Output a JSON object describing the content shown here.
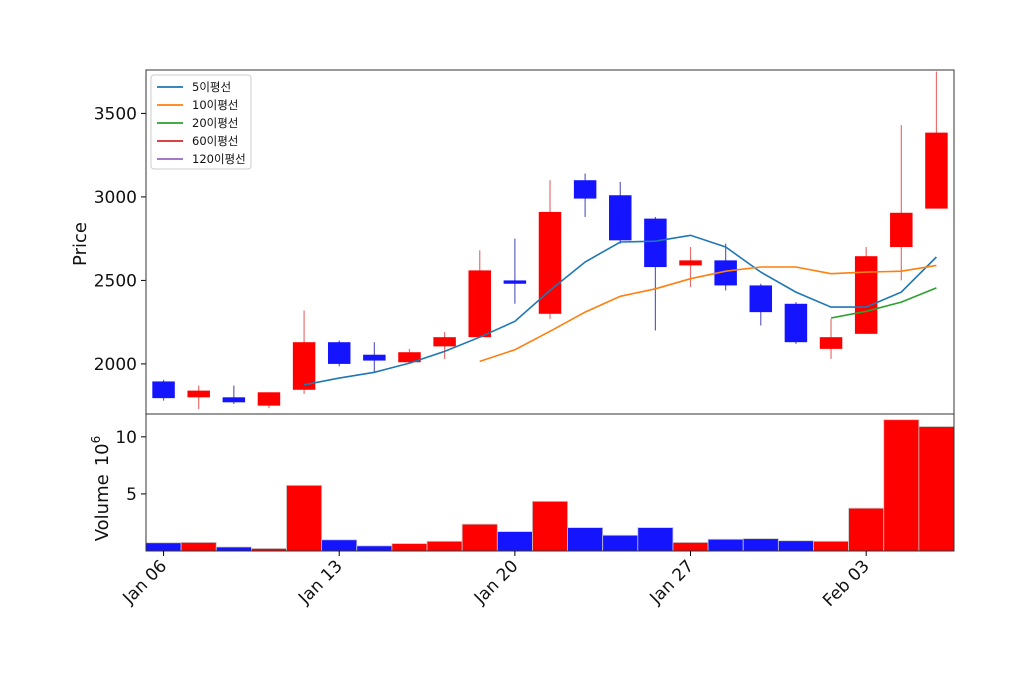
{
  "chart_data": [
    {
      "type": "candlestick",
      "ylabel": "Price",
      "ylim": [
        1700,
        3760
      ],
      "yticks": [
        2000,
        2500,
        3000,
        3500
      ],
      "up_color": "#ff0000",
      "down_color": "#1414ff",
      "candles": [
        {
          "date": "2025-01-06",
          "open": 1895,
          "high": 1905,
          "low": 1780,
          "close": 1795
        },
        {
          "date": "2025-01-07",
          "open": 1800,
          "high": 1870,
          "low": 1730,
          "close": 1840
        },
        {
          "date": "2025-01-08",
          "open": 1800,
          "high": 1870,
          "low": 1760,
          "close": 1770
        },
        {
          "date": "2025-01-09",
          "open": 1750,
          "high": 1830,
          "low": 1735,
          "close": 1830
        },
        {
          "date": "2025-01-10",
          "open": 1845,
          "high": 2320,
          "low": 1820,
          "close": 2130
        },
        {
          "date": "2025-01-13",
          "open": 2130,
          "high": 2140,
          "low": 1985,
          "close": 2000
        },
        {
          "date": "2025-01-14",
          "open": 2055,
          "high": 2130,
          "low": 1950,
          "close": 2020
        },
        {
          "date": "2025-01-15",
          "open": 2010,
          "high": 2090,
          "low": 2000,
          "close": 2070
        },
        {
          "date": "2025-01-16",
          "open": 2105,
          "high": 2190,
          "low": 2030,
          "close": 2160
        },
        {
          "date": "2025-01-17",
          "open": 2160,
          "high": 2680,
          "low": 2160,
          "close": 2560
        },
        {
          "date": "2025-01-20",
          "open": 2500,
          "high": 2750,
          "low": 2360,
          "close": 2480
        },
        {
          "date": "2025-01-21",
          "open": 2300,
          "high": 3100,
          "low": 2270,
          "close": 2910
        },
        {
          "date": "2025-01-22",
          "open": 3100,
          "high": 3140,
          "low": 2880,
          "close": 2990
        },
        {
          "date": "2025-01-23",
          "open": 3010,
          "high": 3090,
          "low": 2720,
          "close": 2740
        },
        {
          "date": "2025-01-24",
          "open": 2870,
          "high": 2880,
          "low": 2200,
          "close": 2580
        },
        {
          "date": "2025-01-27",
          "open": 2590,
          "high": 2700,
          "low": 2460,
          "close": 2620
        },
        {
          "date": "2025-01-28",
          "open": 2620,
          "high": 2720,
          "low": 2440,
          "close": 2470
        },
        {
          "date": "2025-01-29",
          "open": 2470,
          "high": 2480,
          "low": 2230,
          "close": 2310
        },
        {
          "date": "2025-01-30",
          "open": 2360,
          "high": 2370,
          "low": 2120,
          "close": 2130
        },
        {
          "date": "2025-01-31",
          "open": 2090,
          "high": 2270,
          "low": 2030,
          "close": 2160
        },
        {
          "date": "2025-02-03",
          "open": 2180,
          "high": 2700,
          "low": 2180,
          "close": 2645
        },
        {
          "date": "2025-02-04",
          "open": 2700,
          "high": 3430,
          "low": 2500,
          "close": 2905
        },
        {
          "date": "2025-02-05",
          "open": 2930,
          "high": 3750,
          "low": 2930,
          "close": 3385
        }
      ],
      "series": [
        {
          "name": "5이평선",
          "color": "#1f77b4",
          "values": [
            null,
            null,
            null,
            null,
            1875,
            1915,
            1950,
            2005,
            2075,
            2160,
            2255,
            2440,
            2610,
            2730,
            2735,
            2770,
            2700,
            2550,
            2430,
            2340,
            2340,
            2430,
            2640
          ]
        },
        {
          "name": "10이평선",
          "color": "#ff7f0e",
          "values": [
            null,
            null,
            null,
            null,
            null,
            null,
            null,
            null,
            null,
            2015,
            2085,
            2195,
            2310,
            2405,
            2450,
            2510,
            2555,
            2580,
            2580,
            2540,
            2550,
            2555,
            2590
          ]
        },
        {
          "name": "20이평선",
          "color": "#2ca02c",
          "values": [
            null,
            null,
            null,
            null,
            null,
            null,
            null,
            null,
            null,
            null,
            null,
            null,
            null,
            null,
            null,
            null,
            null,
            null,
            null,
            2275,
            2315,
            2370,
            2455
          ]
        },
        {
          "name": "60이평선",
          "color": "#d62728",
          "values": []
        },
        {
          "name": "120이평선",
          "color": "#9467bd",
          "values": []
        }
      ],
      "legend_position": "top-left",
      "x_tick_labels": [
        {
          "label": "Jan 06",
          "date": "2025-01-06"
        },
        {
          "label": "Jan 13",
          "date": "2025-01-13"
        },
        {
          "label": "Jan 20",
          "date": "2025-01-20"
        },
        {
          "label": "Jan 27",
          "date": "2025-01-27"
        },
        {
          "label": "Feb 03",
          "date": "2025-02-03"
        }
      ]
    },
    {
      "type": "bar",
      "ylabel": "Volume",
      "yscale_label": "10",
      "yscale_exp": "6",
      "ylim": [
        0,
        12
      ],
      "yticks": [
        5,
        10
      ],
      "values": [
        0.72,
        0.75,
        0.35,
        0.22,
        5.75,
        0.98,
        0.45,
        0.65,
        0.85,
        2.35,
        1.7,
        4.35,
        2.05,
        1.38,
        2.05,
        0.75,
        1.03,
        1.08,
        0.9,
        0.85,
        3.75,
        11.5,
        10.9
      ],
      "colors": [
        "down",
        "up",
        "down",
        "up",
        "up",
        "down",
        "down",
        "up",
        "up",
        "up",
        "down",
        "up",
        "down",
        "down",
        "down",
        "up",
        "down",
        "down",
        "down",
        "up",
        "up",
        "up",
        "up"
      ]
    }
  ]
}
